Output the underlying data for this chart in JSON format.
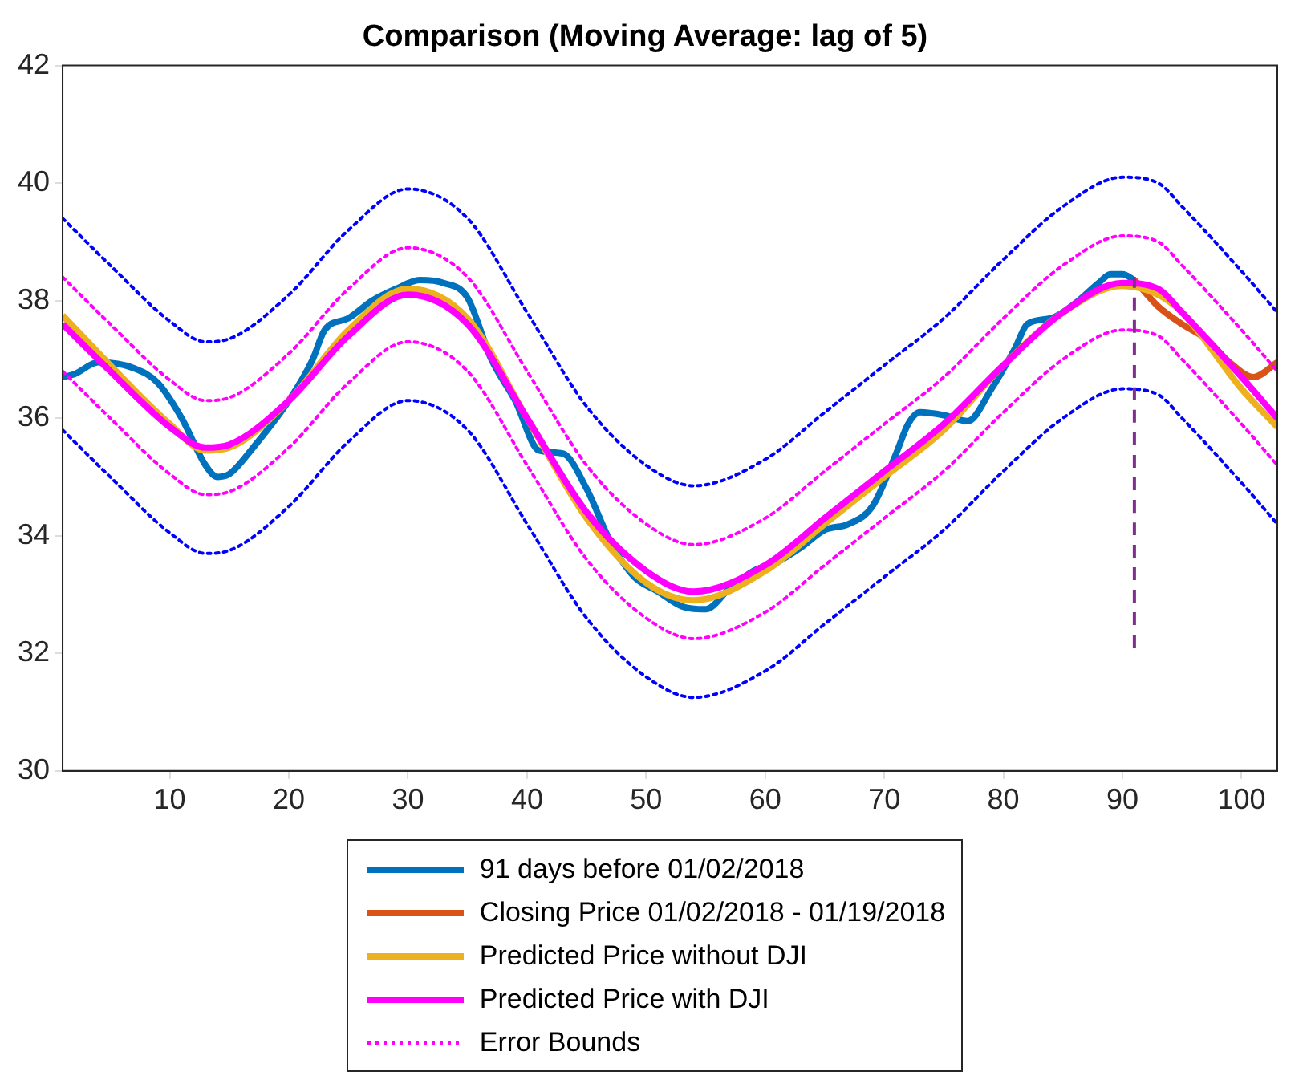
{
  "chart_data": {
    "type": "line",
    "title": "Comparison (Moving Average: lag of 5)",
    "xlim": [
      1,
      103
    ],
    "xticks": [
      10,
      20,
      30,
      40,
      50,
      60,
      70,
      80,
      90,
      100
    ],
    "ylim": [
      30,
      42
    ],
    "yticks": [
      30,
      32,
      34,
      36,
      38,
      40,
      42
    ],
    "grid": false,
    "legend": "bottom",
    "marker": "none",
    "series": [
      {
        "name": "91 days before 01/02/2018",
        "color": "#0072bd",
        "line_style": "solid",
        "x": [
          1,
          2,
          4,
          7,
          9,
          11,
          13,
          14,
          15,
          17,
          20,
          22,
          23,
          25,
          27,
          29,
          31,
          33,
          35,
          37,
          39,
          41,
          43,
          45,
          47,
          49,
          51,
          53,
          55,
          57,
          59,
          61,
          63,
          65,
          67,
          69,
          71,
          72,
          73,
          75,
          77,
          79,
          81,
          82,
          84,
          86,
          88,
          89,
          90,
          91
        ],
        "values": [
          36.7,
          36.75,
          36.95,
          36.85,
          36.6,
          36.0,
          35.2,
          35.0,
          35.05,
          35.5,
          36.3,
          37.0,
          37.5,
          37.7,
          38.0,
          38.2,
          38.35,
          38.3,
          38.05,
          37.0,
          36.3,
          35.45,
          35.4,
          34.8,
          33.9,
          33.3,
          33.05,
          32.8,
          32.75,
          33.1,
          33.4,
          33.55,
          33.8,
          34.1,
          34.2,
          34.5,
          35.4,
          35.9,
          36.1,
          36.05,
          35.95,
          36.5,
          37.2,
          37.6,
          37.7,
          37.95,
          38.3,
          38.45,
          38.45,
          38.35
        ]
      },
      {
        "name": "Closing Price 01/02/2018 - 01/19/2018",
        "color": "#d95319",
        "line_style": "solid",
        "x": [
          91,
          93,
          95,
          97,
          99,
          101,
          103
        ],
        "values": [
          38.35,
          37.9,
          37.6,
          37.35,
          36.95,
          36.7,
          36.95
        ]
      },
      {
        "name": "Predicted Price without DJI",
        "color": "#edb120",
        "line_style": "solid",
        "x": [
          1,
          5,
          10,
          13,
          15,
          20,
          25,
          30,
          35,
          40,
          45,
          50,
          54,
          60,
          65,
          70,
          75,
          80,
          85,
          90,
          93,
          95,
          100,
          103
        ],
        "values": [
          37.75,
          36.9,
          35.9,
          35.45,
          35.5,
          36.3,
          37.5,
          38.2,
          37.7,
          36.0,
          34.3,
          33.2,
          32.9,
          33.4,
          34.2,
          35.0,
          35.8,
          36.9,
          37.8,
          38.25,
          38.1,
          37.8,
          36.5,
          35.85
        ]
      },
      {
        "name": "Predicted Price with DJI",
        "color": "#ff00ff",
        "line_style": "solid",
        "x": [
          1,
          5,
          10,
          13,
          15,
          20,
          25,
          30,
          35,
          40,
          45,
          50,
          54,
          60,
          65,
          70,
          75,
          80,
          85,
          90,
          93,
          95,
          100,
          103
        ],
        "values": [
          37.6,
          36.8,
          35.85,
          35.5,
          35.55,
          36.3,
          37.4,
          38.1,
          37.6,
          36.0,
          34.4,
          33.4,
          33.05,
          33.5,
          34.3,
          35.1,
          35.9,
          36.9,
          37.8,
          38.3,
          38.2,
          37.8,
          36.7,
          36.0
        ]
      },
      {
        "name": "Error Bounds",
        "color": "#ff00ff",
        "line_style": "dotted",
        "x": [
          1,
          5,
          10,
          13,
          15,
          20,
          25,
          30,
          35,
          40,
          45,
          50,
          54,
          60,
          65,
          70,
          75,
          80,
          85,
          90,
          93,
          95,
          100,
          103
        ],
        "values": [
          38.4,
          37.6,
          36.65,
          36.3,
          36.35,
          37.1,
          38.2,
          38.9,
          38.4,
          36.8,
          35.2,
          34.2,
          33.85,
          34.3,
          35.1,
          35.9,
          36.7,
          37.7,
          38.6,
          39.1,
          39.0,
          38.6,
          37.5,
          36.8
        ]
      },
      {
        "color": "#ff00ff",
        "line_style": "dotted",
        "x": [
          1,
          5,
          10,
          13,
          15,
          20,
          25,
          30,
          35,
          40,
          45,
          50,
          54,
          60,
          65,
          70,
          75,
          80,
          85,
          90,
          93,
          95,
          100,
          103
        ],
        "values": [
          36.8,
          36.0,
          35.05,
          34.7,
          34.75,
          35.5,
          36.6,
          37.3,
          36.8,
          35.2,
          33.6,
          32.6,
          32.25,
          32.7,
          33.5,
          34.3,
          35.1,
          36.1,
          37.0,
          37.5,
          37.4,
          37.0,
          35.9,
          35.2
        ]
      },
      {
        "color": "#0000ff",
        "line_style": "dotted",
        "x": [
          1,
          5,
          10,
          13,
          15,
          20,
          25,
          30,
          35,
          40,
          45,
          50,
          54,
          60,
          65,
          70,
          75,
          80,
          85,
          90,
          93,
          95,
          100,
          103
        ],
        "values": [
          39.4,
          38.6,
          37.65,
          37.3,
          37.35,
          38.1,
          39.2,
          39.9,
          39.4,
          37.8,
          36.2,
          35.2,
          34.85,
          35.3,
          36.1,
          36.9,
          37.7,
          38.7,
          39.6,
          40.1,
          40.0,
          39.6,
          38.5,
          37.8
        ]
      },
      {
        "color": "#0000ff",
        "line_style": "dotted",
        "x": [
          1,
          5,
          10,
          13,
          15,
          20,
          25,
          30,
          35,
          40,
          45,
          50,
          54,
          60,
          65,
          70,
          75,
          80,
          85,
          90,
          93,
          95,
          100,
          103
        ],
        "values": [
          35.8,
          35.0,
          34.05,
          33.7,
          33.75,
          34.5,
          35.6,
          36.3,
          35.8,
          34.2,
          32.6,
          31.6,
          31.25,
          31.7,
          32.5,
          33.3,
          34.1,
          35.1,
          36.0,
          36.5,
          36.4,
          36.0,
          34.9,
          34.2
        ]
      },
      {
        "color": "#7e2f8e",
        "line_style": "dashed",
        "x": [
          91,
          91
        ],
        "values": [
          32.1,
          38.4
        ]
      }
    ]
  }
}
